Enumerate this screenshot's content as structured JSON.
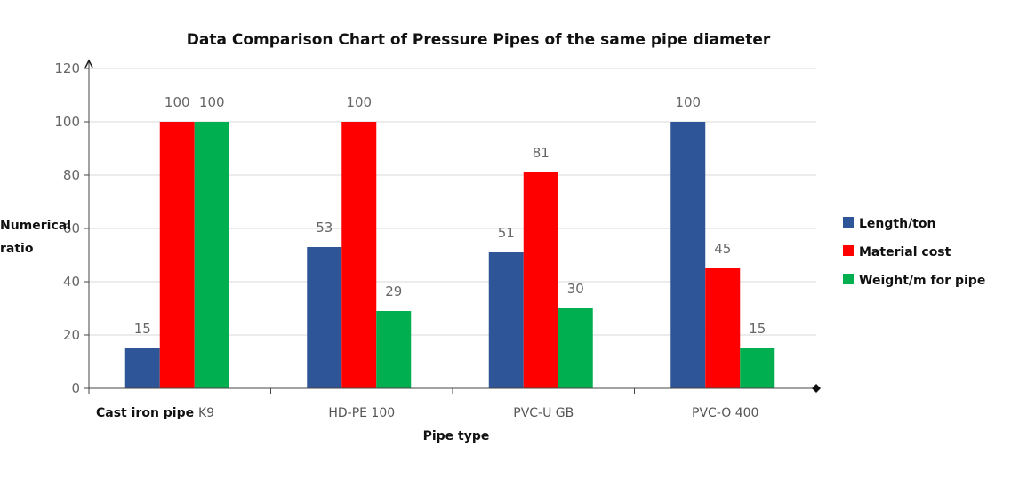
{
  "chart_data": {
    "type": "bar",
    "title": "Data Comparison Chart of Pressure Pipes of the same pipe diameter",
    "xlabel": "Pipe type",
    "ylabel_line1": "Numerical",
    "ylabel_line2": "ratio",
    "categories": [
      "K9",
      "HD-PE 100",
      "PVC-U  GB",
      "PVC-O 400"
    ],
    "first_category_prefix": "Cast iron pipe",
    "ylim": [
      0,
      120
    ],
    "yticks": [
      0,
      20,
      40,
      60,
      80,
      100,
      120
    ],
    "grid": true,
    "legend_position": "right",
    "series": [
      {
        "name": "Length/ton",
        "color": "#2e5597",
        "values": [
          15,
          53,
          51,
          100
        ]
      },
      {
        "name": "Material cost",
        "color": "#ff0000",
        "values": [
          100,
          100,
          81,
          45
        ]
      },
      {
        "name": "Weight/m for pipe",
        "color": "#00b050",
        "values": [
          100,
          29,
          30,
          15
        ]
      }
    ]
  }
}
